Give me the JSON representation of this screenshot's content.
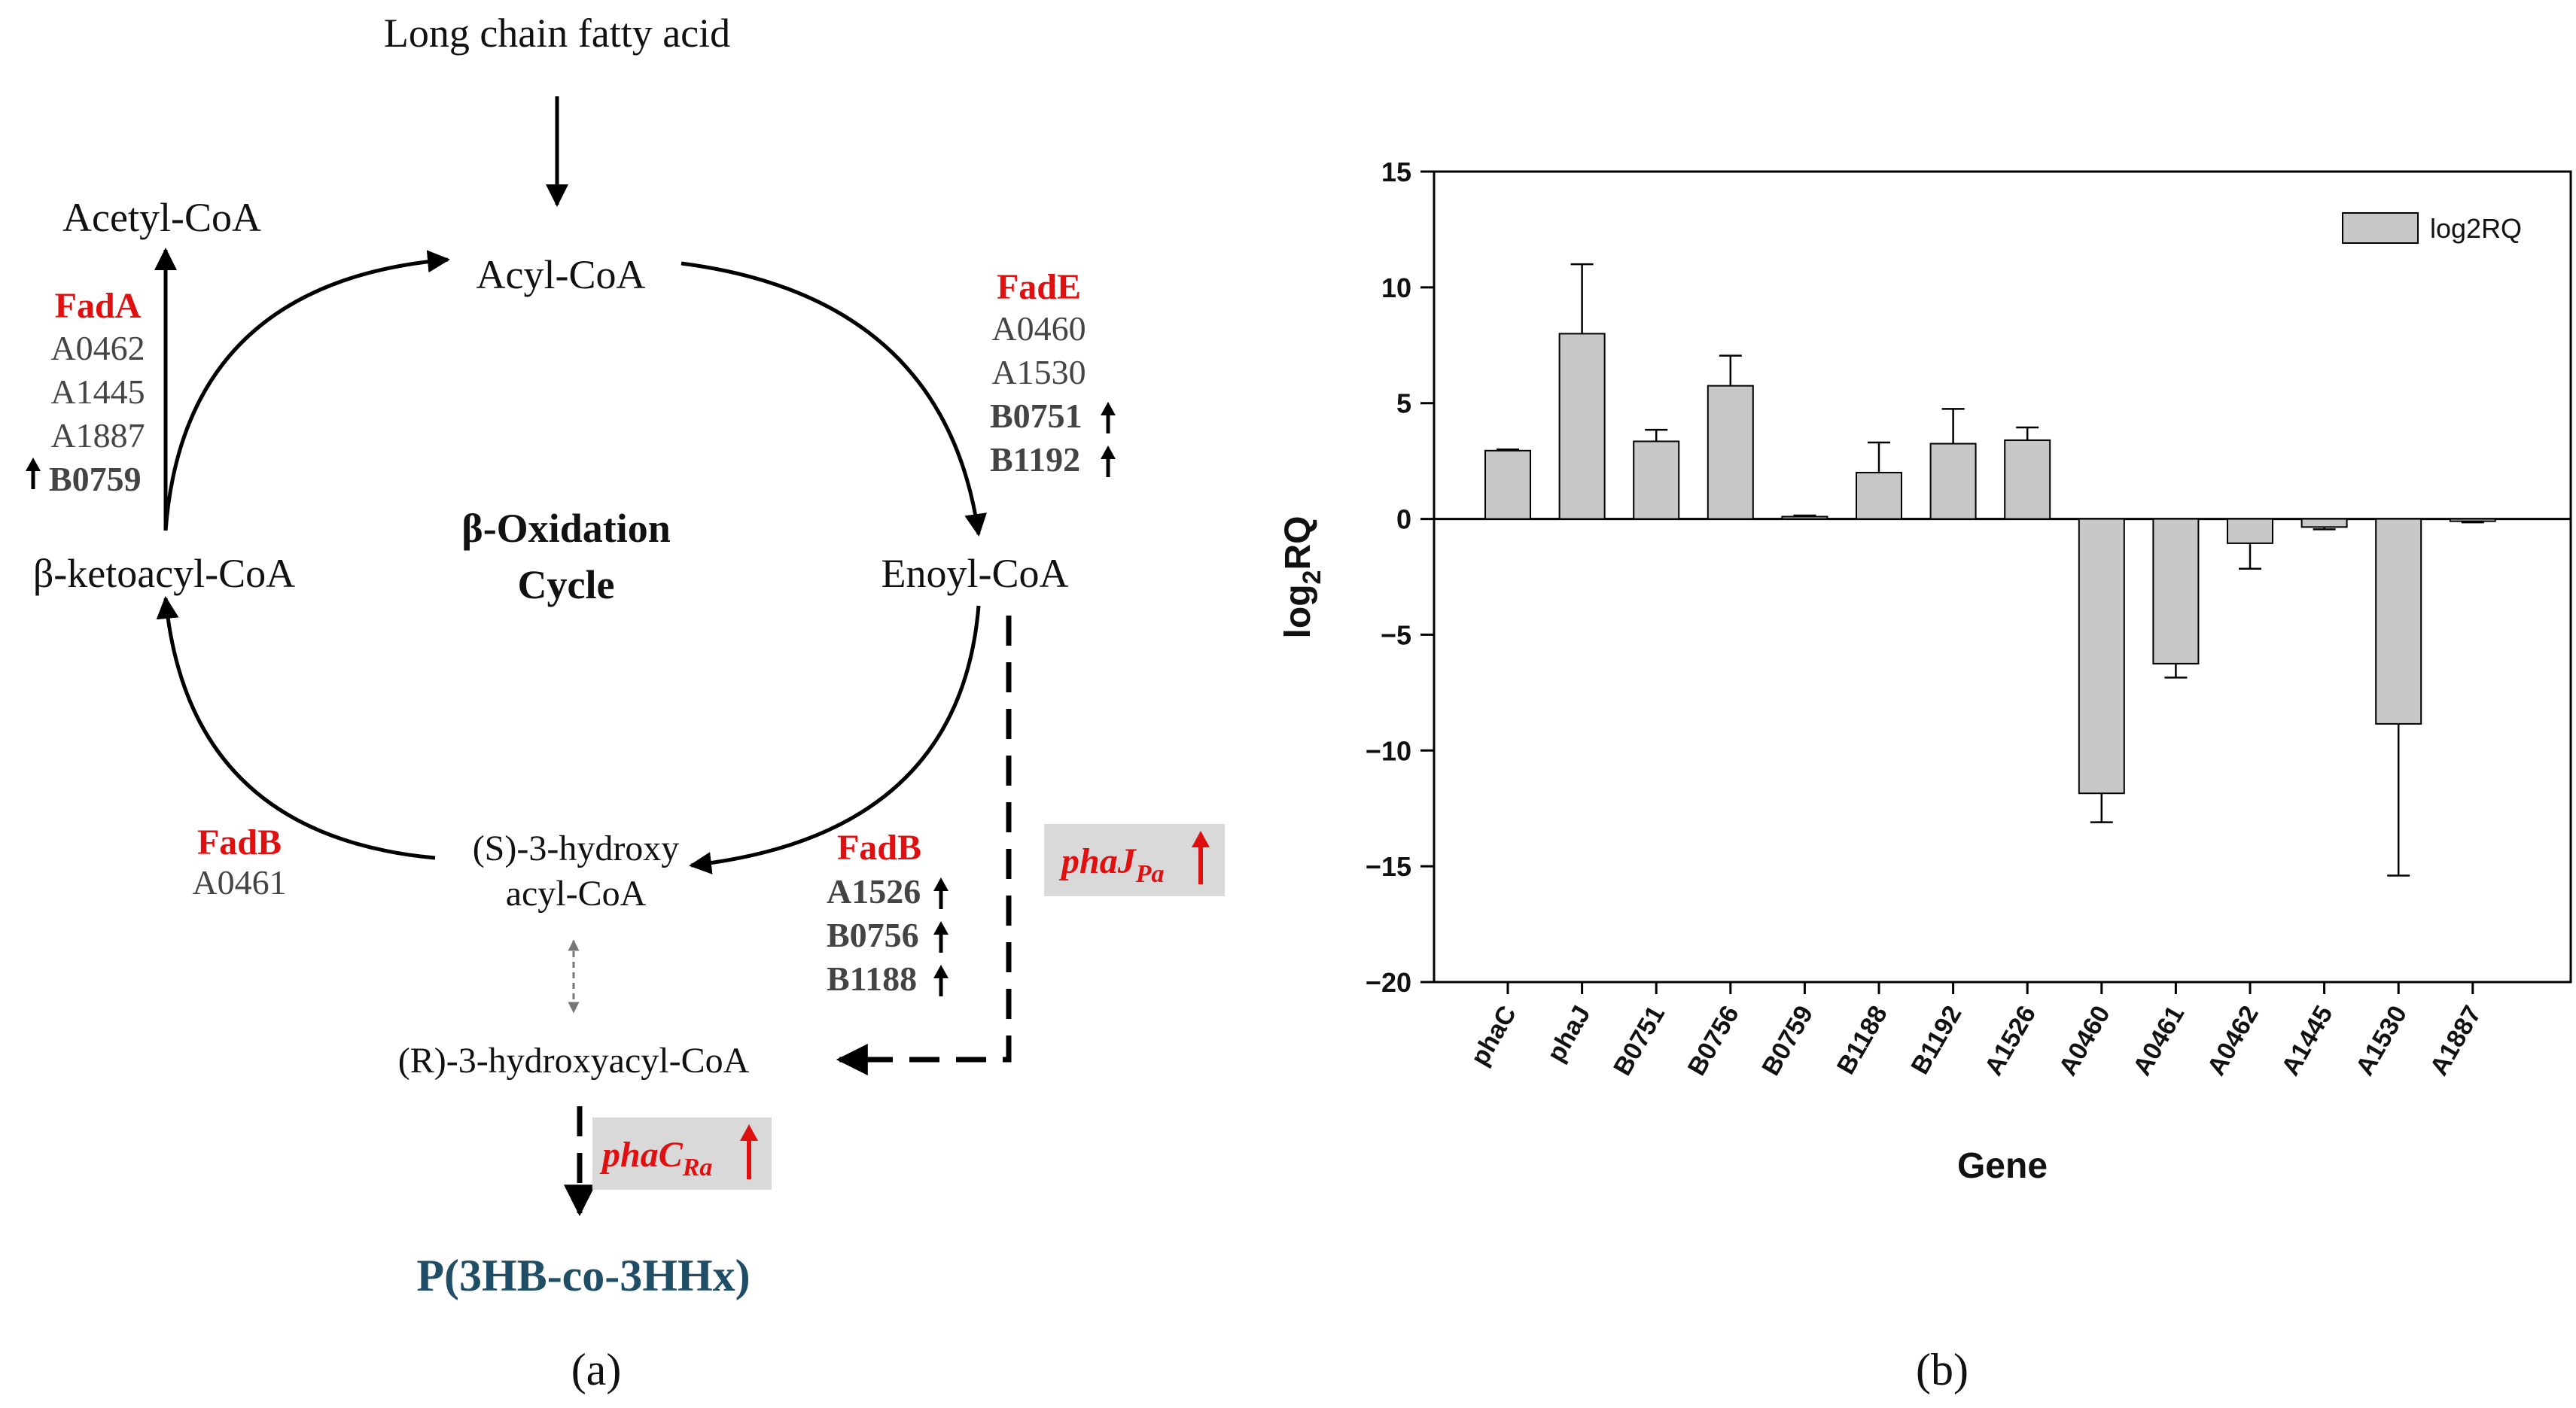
{
  "panel_a": {
    "top_input": "Long chain fatty acid",
    "acyl_coa": "Acyl-CoA",
    "acetyl_coa": "Acetyl-CoA",
    "enoyl_coa": "Enoyl-CoA",
    "ketoacyl_coa": "β-ketoacyl-CoA",
    "center_title_line1": "β-Oxidation",
    "center_title_line2": "Cycle",
    "s_hydroxy_line1": "(S)-3-hydroxy",
    "s_hydroxy_line2": "acyl-CoA",
    "r_hydroxy": "(R)-3-hydroxyacyl-CoA",
    "product": "P(3HB-co-3HHx)",
    "fadA": {
      "name": "FadA",
      "genes": [
        "A0462",
        "A1445",
        "A1887"
      ],
      "up_gene": "B0759"
    },
    "fadE": {
      "name": "FadE",
      "genes": [
        "A0460",
        "A1530"
      ],
      "up_genes": [
        "B0751",
        "B1192"
      ]
    },
    "fadB_left": {
      "name": "FadB",
      "genes": [
        "A0461"
      ]
    },
    "fadB_right": {
      "name": "FadB",
      "up_genes": [
        "A1526",
        "B0756",
        "B1188"
      ]
    },
    "phaJ": {
      "main": "phaJ",
      "sub": "Pa"
    },
    "phaC": {
      "main": "phaC",
      "sub": "Ra"
    },
    "label": "(a)"
  },
  "panel_b": {
    "label": "(b)",
    "colors": {
      "bar": "#c8c8c8",
      "enzyme_red": "#e01010",
      "product_blue": "#1f4e66"
    }
  },
  "chart_data": {
    "type": "bar",
    "title": "",
    "xlabel": "Gene",
    "ylabel_main": "log",
    "ylabel_sub": "2",
    "ylabel_rest": "RQ",
    "legend": "log2RQ",
    "legend_position": "top-right",
    "ylim": [
      -20,
      15
    ],
    "yticks": [
      15,
      10,
      5,
      0,
      -5,
      -10,
      -15,
      -20
    ],
    "ytick_labels": [
      "15",
      "10",
      "5",
      "0",
      "−5",
      "−10",
      "−15",
      "−20"
    ],
    "categories": [
      "phaC",
      "phaJ",
      "B0751",
      "B0756",
      "B0759",
      "B1188",
      "B1192",
      "A1526",
      "A0460",
      "A0461",
      "A0462",
      "A1445",
      "A1530",
      "A1887"
    ],
    "series": [
      {
        "name": "log2RQ",
        "values": [
          2.95,
          8.0,
          3.35,
          5.75,
          0.1,
          2.0,
          3.25,
          3.4,
          -11.85,
          -6.25,
          -1.05,
          -0.35,
          -8.85,
          -0.1
        ],
        "errors": [
          0.05,
          3.0,
          0.5,
          1.3,
          0.05,
          1.3,
          1.5,
          0.55,
          1.25,
          0.6,
          1.1,
          0.1,
          6.55,
          0.05
        ]
      }
    ]
  }
}
